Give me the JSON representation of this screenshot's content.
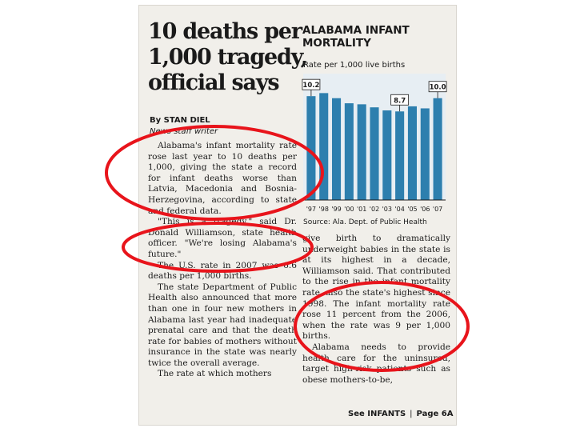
{
  "article": {
    "headline": [
      "10 deaths per",
      "1,000 tragedy,",
      "official says"
    ],
    "byline": "By STAN DIEL",
    "staff": "News staff writer",
    "left_paragraphs": [
      "Alabama's infant mortality rate rose last year to 10 deaths per 1,000, giving the state a record for infant deaths worse than Latvia, Macedonia and Bosnia-Herzegovina, according to state and federal data.",
      "\"This is a tragedy,\" said Dr. Donald Williamson, state health officer. \"We're losing Alabama's future.\"",
      "The U.S. rate in 2007 was 6.6 deaths per 1,000 births.",
      "The state Department of Public Health also announced that more than one in four new mothers in Alabama last year had inadequate prenatal care and that the death rate for babies of mothers without insurance in the state was nearly twice the overall average.",
      "The rate at which mothers"
    ],
    "right_paragraphs_continued": "give birth to dramatically underweight babies in the state is at its highest in a decade, Williamson said. That contributed to the rise in the infant mortality rate, also the state's highest since 1998. The infant mortality rate rose 11 percent from the 2006, when the rate was 9 per 1,000 births.",
    "right_paragraphs": [
      "Alabama needs to provide health care for the uninsured, target high-risk patients such as obese mothers-to-be,"
    ],
    "jump": {
      "label": "See INFANTS",
      "separator": "|",
      "page": "Page 6A"
    }
  },
  "chart_data": {
    "type": "bar",
    "title": "ALABAMA INFANT MORTALITY",
    "title_lines": [
      "ALABAMA INFANT",
      "MORTALITY"
    ],
    "subtitle": "Rate per 1,000 live births",
    "categories": [
      "'97",
      "'98",
      "'99",
      "'00",
      "'01",
      "'02",
      "'03",
      "'04",
      "'05",
      "'06",
      "'07"
    ],
    "values": [
      10.2,
      10.5,
      10.0,
      9.5,
      9.4,
      9.1,
      8.8,
      8.7,
      9.2,
      9.0,
      10.0
    ],
    "data_labels": [
      {
        "index": 0,
        "text": "10.2"
      },
      {
        "index": 7,
        "text": "8.7"
      },
      {
        "index": 10,
        "text": "10.0"
      }
    ],
    "ylim": [
      0,
      11
    ],
    "bar_color": "#2d7fae",
    "highlight_color": "#e7eef3",
    "source": "Source: Ala. Dept. of Public Health"
  },
  "annotations": {
    "circle_color": "#e8141b"
  }
}
